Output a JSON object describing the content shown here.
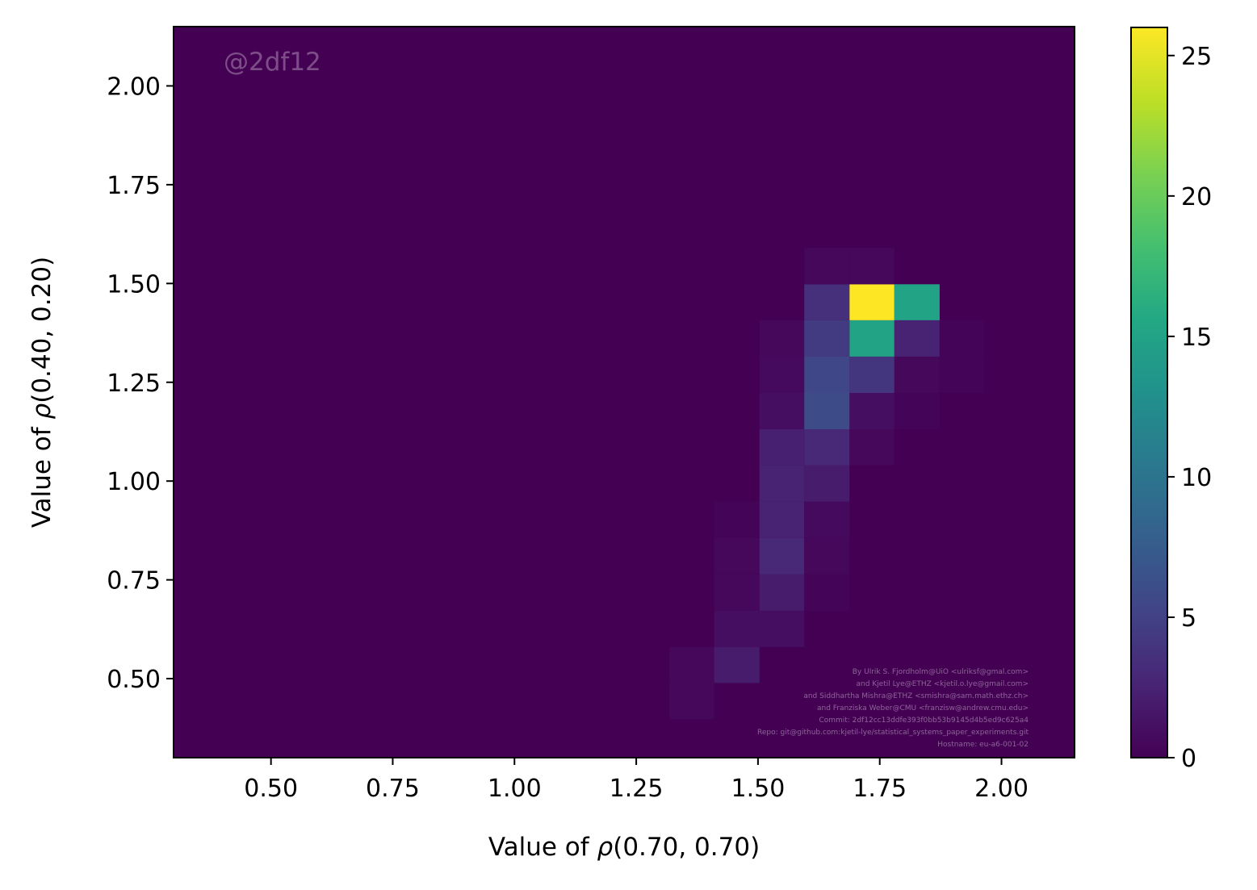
{
  "chart_data": {
    "type": "heatmap",
    "xlabel_prefix": "Value of ",
    "xlabel_symbol": "ρ",
    "xlabel_suffix": "(0.70, 0.70)",
    "ylabel_prefix": "Value of ",
    "ylabel_symbol": "ρ",
    "ylabel_suffix": "(0.40, 0.20)",
    "xlim": [
      0.3,
      2.15
    ],
    "ylim": [
      0.3,
      2.15
    ],
    "xticks": [
      "0.50",
      "0.75",
      "1.00",
      "1.25",
      "1.50",
      "1.75",
      "2.00"
    ],
    "xtick_values": [
      0.5,
      0.75,
      1.0,
      1.25,
      1.5,
      1.75,
      2.0
    ],
    "yticks": [
      "0.50",
      "0.75",
      "1.00",
      "1.25",
      "1.50",
      "1.75",
      "2.00"
    ],
    "ytick_values": [
      0.5,
      0.75,
      1.0,
      1.25,
      1.5,
      1.75,
      2.0
    ],
    "colorbar": {
      "min": 0,
      "max": 26,
      "ticks": [
        "0",
        "5",
        "10",
        "15",
        "20",
        "25"
      ],
      "tick_values": [
        0,
        5,
        10,
        15,
        20,
        25
      ],
      "colormap": "viridis"
    },
    "bin_edges_x": [
      1.318,
      1.41,
      1.503,
      1.595,
      1.688,
      1.78,
      1.873,
      1.965
    ],
    "bin_edges_y": [
      0.397,
      0.489,
      0.58,
      0.672,
      0.764,
      0.856,
      0.948,
      1.04,
      1.131,
      1.223,
      1.315,
      1.407,
      1.498,
      1.59
    ],
    "cells": [
      {
        "x": 0,
        "y": 0,
        "value": 0.5
      },
      {
        "x": 0,
        "y": 1,
        "value": 0.5
      },
      {
        "x": 1,
        "y": 1,
        "value": 2
      },
      {
        "x": 1,
        "y": 2,
        "value": 1
      },
      {
        "x": 2,
        "y": 2,
        "value": 1
      },
      {
        "x": 1,
        "y": 3,
        "value": 0.5
      },
      {
        "x": 2,
        "y": 3,
        "value": 2
      },
      {
        "x": 3,
        "y": 3,
        "value": 0.3
      },
      {
        "x": 1,
        "y": 4,
        "value": 0.5
      },
      {
        "x": 2,
        "y": 4,
        "value": 3
      },
      {
        "x": 3,
        "y": 4,
        "value": 0.5
      },
      {
        "x": 1,
        "y": 5,
        "value": 0.3
      },
      {
        "x": 2,
        "y": 5,
        "value": 2.5
      },
      {
        "x": 3,
        "y": 5,
        "value": 0.7
      },
      {
        "x": 2,
        "y": 6,
        "value": 2.5
      },
      {
        "x": 3,
        "y": 6,
        "value": 2
      },
      {
        "x": 2,
        "y": 7,
        "value": 2.3
      },
      {
        "x": 3,
        "y": 7,
        "value": 3
      },
      {
        "x": 4,
        "y": 7,
        "value": 0.5
      },
      {
        "x": 2,
        "y": 8,
        "value": 1
      },
      {
        "x": 3,
        "y": 8,
        "value": 6
      },
      {
        "x": 4,
        "y": 8,
        "value": 1
      },
      {
        "x": 5,
        "y": 8,
        "value": 0.2
      },
      {
        "x": 2,
        "y": 9,
        "value": 0.7
      },
      {
        "x": 3,
        "y": 9,
        "value": 5.5
      },
      {
        "x": 4,
        "y": 9,
        "value": 4
      },
      {
        "x": 5,
        "y": 9,
        "value": 0.5
      },
      {
        "x": 6,
        "y": 9,
        "value": 0.2
      },
      {
        "x": 2,
        "y": 10,
        "value": 0.5
      },
      {
        "x": 3,
        "y": 10,
        "value": 4.5
      },
      {
        "x": 4,
        "y": 10,
        "value": 15
      },
      {
        "x": 5,
        "y": 10,
        "value": 2.5
      },
      {
        "x": 6,
        "y": 10,
        "value": 0.2
      },
      {
        "x": 3,
        "y": 11,
        "value": 3.5
      },
      {
        "x": 4,
        "y": 11,
        "value": 26
      },
      {
        "x": 5,
        "y": 11,
        "value": 15
      },
      {
        "x": 3,
        "y": 12,
        "value": 0.5
      },
      {
        "x": 4,
        "y": 12,
        "value": 0.5
      }
    ],
    "watermark": "@2df12",
    "credits": [
      "By Ulrik S. Fjordholm@UiO <ulriksf@gmal.com>",
      "and Kjetil Lye@ETHZ <kjetil.o.lye@gmail.com>",
      "and Siddhartha Mishra@ETHZ <smishra@sam.math.ethz.ch>",
      "and Franziska Weber@CMU <franzisw@andrew.cmu.edu>",
      "Commit: 2df12cc13ddfe393f0bb53b9145d4b5ed9c625a4",
      "Repo: git@github.com:kjetil-lye/statistical_systems_paper_experiments.git",
      "Hostname: eu-a6-001-02"
    ]
  }
}
